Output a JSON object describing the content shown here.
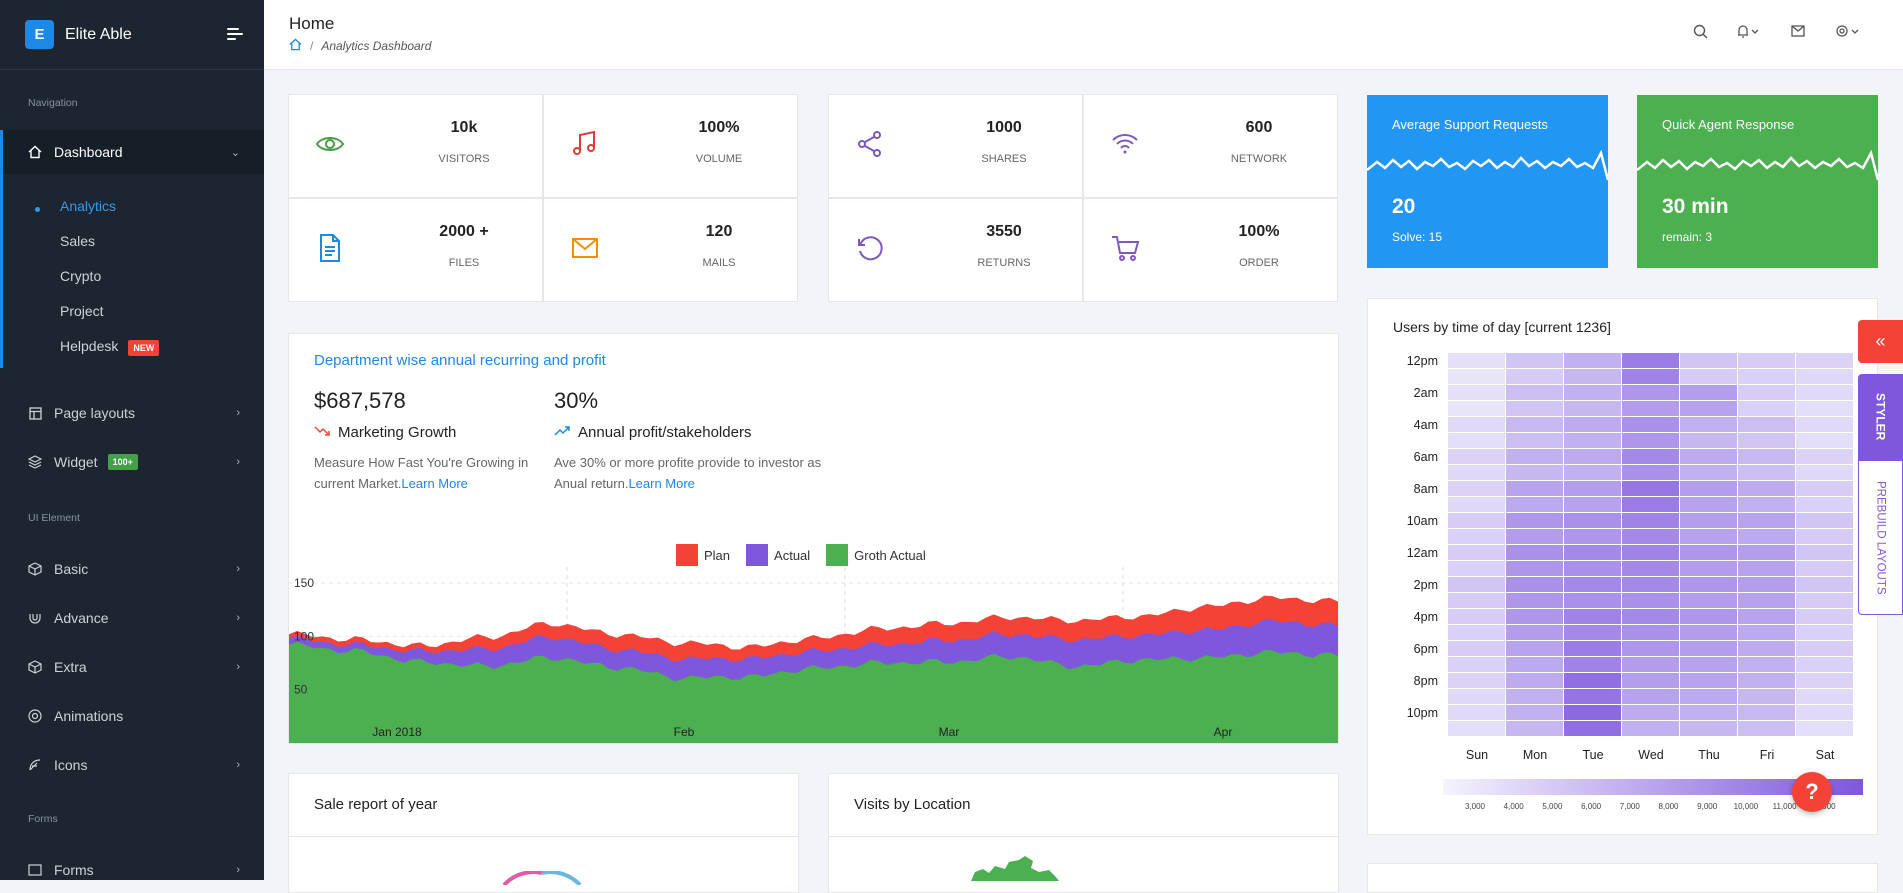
{
  "brand": {
    "logo_letter": "E",
    "name": "Elite Able"
  },
  "nav": {
    "caption_navigation": "Navigation",
    "dashboard": "Dashboard",
    "sub": [
      "Analytics",
      "Sales",
      "Crypto",
      "Project",
      "Helpdesk"
    ],
    "helpdesk_badge": "NEW",
    "page_layouts": "Page layouts",
    "widget": "Widget",
    "widget_badge": "100+",
    "caption_ui": "UI Element",
    "basic": "Basic",
    "advance": "Advance",
    "extra": "Extra",
    "animations": "Animations",
    "icons": "Icons",
    "caption_forms": "Forms",
    "forms": "Forms"
  },
  "header": {
    "title": "Home",
    "breadcrumb": "Analytics Dashboard"
  },
  "stats": [
    {
      "value": "10k",
      "label": "VISITORS",
      "icon": "eye-icon",
      "color": "#43a047"
    },
    {
      "value": "100%",
      "label": "VOLUME",
      "icon": "music-icon",
      "color": "#e53935"
    },
    {
      "value": "1000",
      "label": "SHARES",
      "icon": "share-icon",
      "color": "#7e57c2"
    },
    {
      "value": "600",
      "label": "NETWORK",
      "icon": "wifi-icon",
      "color": "#7e57c2"
    },
    {
      "value": "2000 +",
      "label": "FILES",
      "icon": "file-icon",
      "color": "#1e88e5"
    },
    {
      "value": "120",
      "label": "MAILS",
      "icon": "mail-icon",
      "color": "#fb8c00"
    },
    {
      "value": "3550",
      "label": "RETURNS",
      "icon": "refresh-icon",
      "color": "#7e57c2"
    },
    {
      "value": "100%",
      "label": "ORDER",
      "icon": "cart-icon",
      "color": "#7e57c2"
    }
  ],
  "highlights": [
    {
      "title": "Average Support Requests",
      "value": "20",
      "sub": "Solve: 15",
      "color": "#2196f3"
    },
    {
      "title": "Quick Agent Response",
      "value": "30 min",
      "sub": "remain: 3",
      "color": "#4caf50"
    }
  ],
  "dept": {
    "title": "Department wise annual recurring and profit",
    "m1_value": "$687,578",
    "m1_label": "Marketing Growth",
    "m1_desc": "Measure How Fast You're Growing in current Market.",
    "m1_link": "Learn More",
    "m2_value": "30%",
    "m2_label": "Annual profit/stakeholders",
    "m2_desc": "Ave 30% or more profite provide to investor as Anual return.",
    "m2_link": "Learn More"
  },
  "heatmap_title": "Users by time of day [current 1236]",
  "sale_report_title": "Sale report of year",
  "visits_title": "Visits by Location",
  "styler": {
    "tab1": "STYLER",
    "tab2": "PREBUILD LAYOUTS"
  },
  "help_glyph": "?",
  "chart_data": [
    {
      "type": "area",
      "legend": [
        "Plan",
        "Actual",
        "Groth Actual"
      ],
      "colors": [
        "#f44336",
        "#7e57dd",
        "#4caf50"
      ],
      "x_ticks": [
        "Jan 2018",
        "Feb",
        "Mar",
        "Apr"
      ],
      "y_ticks": [
        50,
        100,
        150
      ],
      "ylim": [
        0,
        165
      ],
      "series": [
        {
          "name": "Plan",
          "values": [
            102,
            97,
            91,
            99,
            112,
            102,
            94,
            90,
            98,
            107,
            112,
            118,
            115,
            119,
            128,
            136,
            133
          ]
        },
        {
          "name": "Actual",
          "values": [
            98,
            92,
            86,
            88,
            99,
            88,
            79,
            79,
            86,
            92,
            96,
            102,
            97,
            101,
            106,
            114,
            110
          ]
        },
        {
          "name": "Groth Actual",
          "values": [
            92,
            86,
            76,
            72,
            80,
            71,
            61,
            62,
            70,
            75,
            76,
            81,
            72,
            78,
            80,
            85,
            82
          ]
        }
      ]
    },
    {
      "type": "heatmap",
      "title": "Users by time of day [current 1236]",
      "x_categories": [
        "Sun",
        "Mon",
        "Tue",
        "Wed",
        "Thu",
        "Fri",
        "Sat"
      ],
      "y_labels": [
        "12pm",
        "2am",
        "4am",
        "6am",
        "8am",
        "10am",
        "12am",
        "2pm",
        "4pm",
        "6pm",
        "8pm",
        "10pm"
      ],
      "scale_ticks": [
        "3,000",
        "4,000",
        "5,000",
        "6,000",
        "7,000",
        "8,000",
        "9,000",
        "10,000",
        "11,000",
        "12,000"
      ],
      "values": [
        [
          1500,
          3500,
          5000,
          9000,
          3500,
          3000,
          2500
        ],
        [
          1500,
          4000,
          5000,
          7000,
          6500,
          3000,
          2000
        ],
        [
          2000,
          4500,
          5500,
          7500,
          5000,
          4000,
          2000
        ],
        [
          2500,
          5000,
          5500,
          8000,
          5500,
          4500,
          2500
        ],
        [
          2500,
          6000,
          6500,
          9500,
          6500,
          5500,
          3000
        ],
        [
          3000,
          7000,
          7500,
          8500,
          6500,
          6000,
          3500
        ],
        [
          3000,
          7500,
          8000,
          8500,
          7000,
          6500,
          3500
        ],
        [
          3500,
          7500,
          8000,
          8000,
          7000,
          6500,
          3500
        ],
        [
          3000,
          7000,
          8500,
          8000,
          7000,
          6000,
          3000
        ],
        [
          3000,
          6000,
          9000,
          7000,
          6500,
          5500,
          3000
        ],
        [
          2500,
          5500,
          10000,
          6500,
          6000,
          5000,
          2500
        ],
        [
          2000,
          5000,
          10500,
          5500,
          5000,
          4500,
          2000
        ]
      ]
    }
  ]
}
